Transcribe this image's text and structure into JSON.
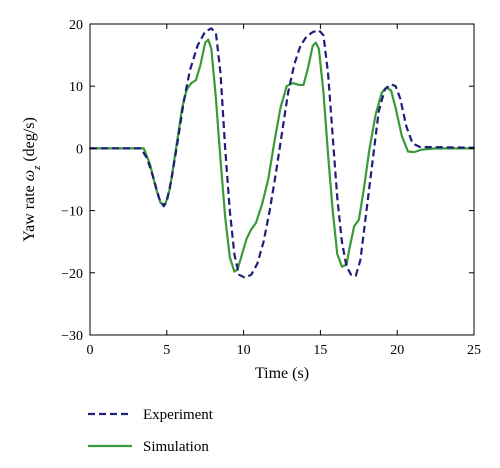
{
  "chart_data": {
    "type": "line",
    "title": "",
    "xlabel": "Time (s)",
    "ylabel": "Yaw rate ωz (deg/s)",
    "ylabel_parts": {
      "prefix": "Yaw rate ",
      "symbol": "ω",
      "subscript": "z",
      "suffix": " (deg/s)"
    },
    "xlim": [
      0,
      25
    ],
    "ylim": [
      -30,
      20
    ],
    "xticks": [
      0,
      5,
      10,
      15,
      20,
      25
    ],
    "yticks": [
      -30,
      -20,
      -10,
      0,
      10,
      20
    ],
    "grid": false,
    "legend_position": "bottom-left-outside",
    "series": [
      {
        "name": "Experiment",
        "color": "#1f1f7a",
        "style": "dashed",
        "points": [
          [
            0,
            0
          ],
          [
            3.3,
            0
          ],
          [
            3.7,
            -1.5
          ],
          [
            4.1,
            -4.5
          ],
          [
            4.5,
            -8
          ],
          [
            4.8,
            -9.3
          ],
          [
            5.0,
            -8.5
          ],
          [
            5.3,
            -5
          ],
          [
            5.7,
            1
          ],
          [
            6.1,
            7.5
          ],
          [
            6.5,
            12.5
          ],
          [
            7.0,
            16.5
          ],
          [
            7.5,
            18.8
          ],
          [
            7.9,
            19.3
          ],
          [
            8.2,
            18.5
          ],
          [
            8.5,
            12
          ],
          [
            8.8,
            0
          ],
          [
            9.1,
            -10
          ],
          [
            9.4,
            -17
          ],
          [
            9.7,
            -20.3
          ],
          [
            10.1,
            -20.8
          ],
          [
            10.5,
            -20.3
          ],
          [
            10.9,
            -18.5
          ],
          [
            11.3,
            -15
          ],
          [
            11.7,
            -10
          ],
          [
            12.1,
            -4
          ],
          [
            12.5,
            2.5
          ],
          [
            12.9,
            9
          ],
          [
            13.3,
            13.5
          ],
          [
            13.7,
            16.5
          ],
          [
            14.1,
            18
          ],
          [
            14.5,
            18.7
          ],
          [
            14.9,
            19
          ],
          [
            15.2,
            18.2
          ],
          [
            15.5,
            12
          ],
          [
            15.8,
            2
          ],
          [
            16.1,
            -8
          ],
          [
            16.4,
            -15
          ],
          [
            16.7,
            -19
          ],
          [
            17.0,
            -20.3
          ],
          [
            17.3,
            -20.5
          ],
          [
            17.6,
            -18
          ],
          [
            18.0,
            -10
          ],
          [
            18.4,
            -2
          ],
          [
            18.8,
            6
          ],
          [
            19.2,
            9.5
          ],
          [
            19.6,
            10.3
          ],
          [
            19.9,
            10
          ],
          [
            20.2,
            8
          ],
          [
            20.6,
            3.5
          ],
          [
            21.0,
            0.8
          ],
          [
            21.5,
            0.2
          ],
          [
            22.5,
            0.2
          ],
          [
            25,
            0.1
          ]
        ]
      },
      {
        "name": "Simulation",
        "color": "#3a9a3a",
        "style": "solid",
        "points": [
          [
            0,
            0
          ],
          [
            3.5,
            0
          ],
          [
            3.9,
            -2.5
          ],
          [
            4.3,
            -6.5
          ],
          [
            4.6,
            -8.8
          ],
          [
            4.9,
            -9
          ],
          [
            5.2,
            -6.5
          ],
          [
            5.6,
            0
          ],
          [
            6.0,
            6.5
          ],
          [
            6.3,
            9.5
          ],
          [
            6.6,
            10.5
          ],
          [
            6.9,
            11
          ],
          [
            7.2,
            13.5
          ],
          [
            7.5,
            17
          ],
          [
            7.7,
            17.5
          ],
          [
            7.9,
            16
          ],
          [
            8.2,
            8
          ],
          [
            8.5,
            -2
          ],
          [
            8.8,
            -11
          ],
          [
            9.1,
            -17.5
          ],
          [
            9.4,
            -19.8
          ],
          [
            9.6,
            -19.5
          ],
          [
            9.9,
            -17
          ],
          [
            10.2,
            -14.5
          ],
          [
            10.5,
            -13
          ],
          [
            10.8,
            -12
          ],
          [
            11.2,
            -9
          ],
          [
            11.6,
            -5
          ],
          [
            12.0,
            1
          ],
          [
            12.4,
            6.5
          ],
          [
            12.8,
            10
          ],
          [
            13.2,
            10.5
          ],
          [
            13.6,
            10.2
          ],
          [
            13.9,
            10.2
          ],
          [
            14.2,
            13
          ],
          [
            14.5,
            16.5
          ],
          [
            14.7,
            17
          ],
          [
            14.9,
            16
          ],
          [
            15.2,
            9
          ],
          [
            15.5,
            -1
          ],
          [
            15.8,
            -10
          ],
          [
            16.1,
            -17
          ],
          [
            16.4,
            -19
          ],
          [
            16.7,
            -18.7
          ],
          [
            16.9,
            -16
          ],
          [
            17.2,
            -12.5
          ],
          [
            17.5,
            -11.5
          ],
          [
            17.8,
            -7
          ],
          [
            18.2,
            0
          ],
          [
            18.6,
            5.5
          ],
          [
            19.0,
            9
          ],
          [
            19.3,
            9.8
          ],
          [
            19.6,
            9.3
          ],
          [
            19.9,
            6.5
          ],
          [
            20.3,
            2
          ],
          [
            20.7,
            -0.5
          ],
          [
            21.1,
            -0.6
          ],
          [
            21.6,
            -0.2
          ],
          [
            22.5,
            0
          ],
          [
            25,
            0
          ]
        ]
      }
    ]
  }
}
